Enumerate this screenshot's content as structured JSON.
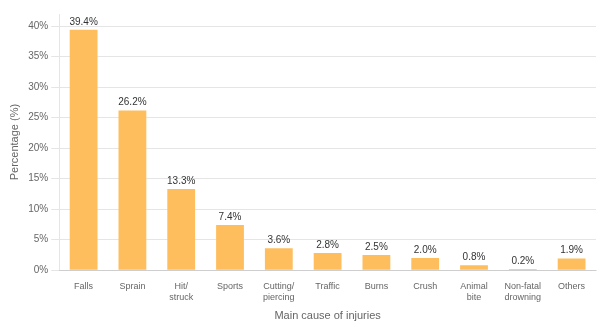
{
  "chart_data": {
    "type": "bar",
    "categories": [
      "Falls",
      "Sprain",
      "Hit/\nstruck",
      "Sports",
      "Cutting/\npiercing",
      "Traffic",
      "Burns",
      "Crush",
      "Animal\nbite",
      "Non-fatal\ndrowning",
      "Others"
    ],
    "values": [
      39.4,
      26.2,
      13.3,
      7.4,
      3.6,
      2.8,
      2.5,
      2.0,
      0.8,
      0.2,
      1.9
    ],
    "value_labels": [
      "39.4%",
      "26.2%",
      "13.3%",
      "7.4%",
      "3.6%",
      "2.8%",
      "2.5%",
      "2.0%",
      "0.8%",
      "0.2%",
      "1.9%"
    ],
    "data_labels": true,
    "color": "#FFBE5E",
    "xlabel": "Main cause of injuries",
    "ylabel": "Percentage (%)",
    "ylim": [
      0,
      42
    ],
    "yticks": [
      {
        "value": 0,
        "label": "0%"
      },
      {
        "value": 5,
        "label": "5%"
      },
      {
        "value": 10,
        "label": "10%"
      },
      {
        "value": 15,
        "label": "15%"
      },
      {
        "value": 20,
        "label": "20%"
      },
      {
        "value": 25,
        "label": "25%"
      },
      {
        "value": 30,
        "label": "30%"
      },
      {
        "value": 35,
        "label": "35%"
      },
      {
        "value": 40,
        "label": "40%"
      }
    ],
    "grid": true
  }
}
